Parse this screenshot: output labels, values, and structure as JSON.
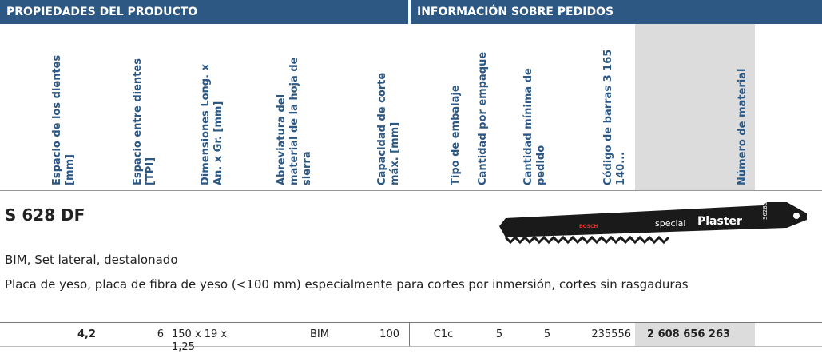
{
  "header": {
    "left": "PROPIEDADES DEL PRODUCTO",
    "right": "INFORMACIÓN SOBRE PEDIDOS"
  },
  "columns": [
    "Espacio de los dientes [mm]",
    "Espacio entre dientes [TPI]",
    "Dimensiones Long. x An. x Gr. [mm]",
    "Abreviatura del material de la hoja de sierra",
    "Capacidad de corte máx. [mm]",
    "Tipo de embalaje",
    "Cantidad por empaque",
    "Cantidad mínima de pedido",
    "Código de barras 3 165 140...",
    "Número de material"
  ],
  "product": {
    "title": "S 628 DF",
    "subtitle": "BIM, Set lateral, destalonado",
    "description": "Placa de yeso, placa de fibra de yeso (<100 mm) especialmente para cortes por inmersión, cortes sin rasgaduras"
  },
  "blade": {
    "brand": "BOSCH",
    "text1": "special",
    "text2": "Plaster",
    "code": "S628DF"
  },
  "row": [
    "4,2",
    "6",
    "150 x 19 x 1,25",
    "BIM",
    "100",
    "C1c",
    "5",
    "5",
    "235556",
    "2 608 656 263"
  ]
}
